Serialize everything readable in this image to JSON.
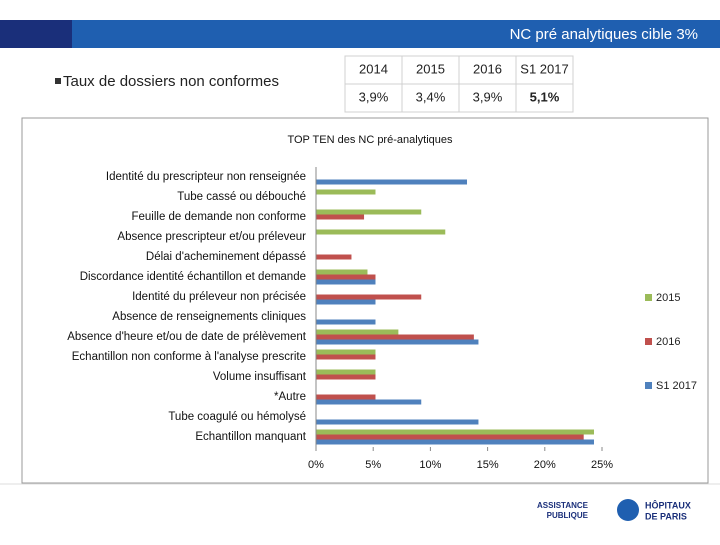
{
  "header": {
    "title": "NC pré analytiques cible 3%"
  },
  "bullet": "Taux de dossiers non conformes",
  "table": {
    "header": [
      "2014",
      "2015",
      "2016",
      "S1 2017"
    ],
    "rows": [
      [
        "3,9%",
        "3,4%",
        "3,9%",
        "5,1%"
      ]
    ]
  },
  "chart_data": {
    "type": "barh",
    "title": "TOP TEN des NC pré-analytiques",
    "categories": [
      "Identité du prescripteur non renseignée",
      "Tube cassé ou débouché",
      "Feuille de demande non conforme",
      "Absence prescripteur et/ou préleveur",
      "Délai d'acheminement dépassé",
      "Discordance identité échantillon et demande",
      "Identité du préleveur non précisée",
      "Absence de renseignements cliniques",
      "Absence d'heure et/ou de date de prélèvement",
      "Echantillon non conforme à l'analyse prescrite",
      "Volume insuffisant",
      "*Autre",
      "Tube coagulé ou hémolysé",
      "Echantillon manquant"
    ],
    "series": [
      {
        "name": "2015",
        "color": "#9bbb59",
        "values": [
          0,
          5.2,
          9.2,
          11.3,
          0,
          4.5,
          0,
          0,
          7.2,
          5.2,
          5.2,
          0,
          0,
          24.3
        ]
      },
      {
        "name": "2016",
        "color": "#c0504d",
        "values": [
          0,
          0,
          4.2,
          0,
          3.1,
          5.2,
          9.2,
          0,
          13.8,
          5.2,
          5.2,
          5.2,
          0,
          23.4
        ]
      },
      {
        "name": "S1 2017",
        "color": "#4f81bd",
        "values": [
          13.2,
          0,
          0,
          0,
          0,
          5.2,
          5.2,
          5.2,
          14.2,
          0,
          0,
          9.2,
          14.2,
          24.3
        ]
      }
    ],
    "xlim": [
      0,
      25
    ],
    "xticks": [
      {
        "value": 0,
        "label": "0%"
      },
      {
        "value": 5,
        "label": "5%"
      },
      {
        "value": 10,
        "label": "10%"
      },
      {
        "value": 15,
        "label": "15%"
      },
      {
        "value": 20,
        "label": "20%"
      },
      {
        "value": 25,
        "label": "25%"
      }
    ],
    "legend": "right"
  },
  "footer": {
    "left": [
      "ASSISTANCE",
      "PUBLIQUE"
    ],
    "right": [
      "HÔPITAUX",
      "DE PARIS"
    ]
  }
}
